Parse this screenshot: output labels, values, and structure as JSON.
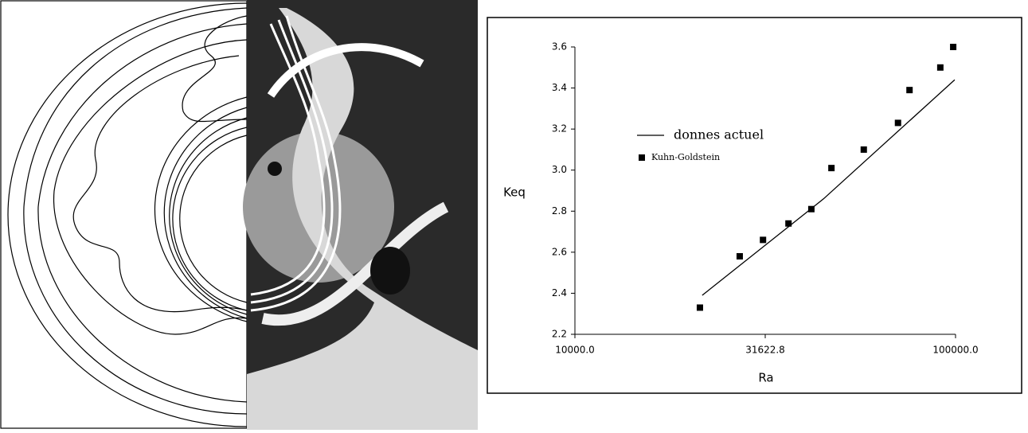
{
  "chart_data": {
    "type": "line",
    "xlabel": "Ra",
    "ylabel": "Keq",
    "xscale": "log",
    "xlim": [
      10000,
      100000
    ],
    "xticks": [
      {
        "value": 10000,
        "label": "10000.0"
      },
      {
        "value": 31622.8,
        "label": "31622.8"
      },
      {
        "value": 100000,
        "label": "100000.0"
      }
    ],
    "ylim": [
      2.2,
      3.6
    ],
    "yticks": [
      2.2,
      2.4,
      2.6,
      2.8,
      {
        "value": 3,
        "label": "3.0"
      },
      3.2,
      3.4,
      3.6
    ],
    "legend": "upper-left",
    "series": [
      {
        "name": "donnes actuel",
        "type": "line",
        "color": "#000000",
        "x": [
          21600,
          45000,
          99500
        ],
        "values": [
          2.39,
          2.86,
          3.44
        ]
      },
      {
        "name": "Kuhn-Goldstein",
        "type": "scatter",
        "color": "#000000",
        "x": [
          21300,
          27100,
          31200,
          36400,
          41800,
          47200,
          57400,
          70600,
          75700,
          91200,
          98600
        ],
        "values": [
          2.33,
          2.58,
          2.66,
          2.74,
          2.81,
          3.01,
          3.1,
          3.23,
          3.39,
          3.5,
          3.6
        ]
      }
    ]
  }
}
